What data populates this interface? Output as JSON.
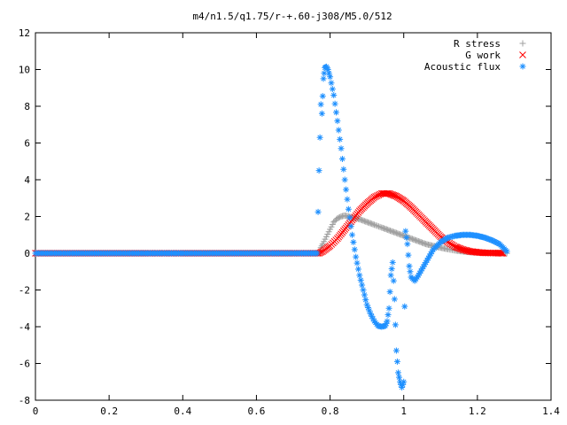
{
  "chart_data": {
    "type": "scatter",
    "title": "m4/n1.5/q1.75/r-+.60-j308/M5.0/512",
    "xlabel": "",
    "ylabel": "",
    "xlim": [
      0,
      1.4
    ],
    "ylim": [
      -8,
      12
    ],
    "xticks": [
      0,
      0.2,
      0.4,
      0.6,
      0.8,
      1,
      1.2,
      1.4
    ],
    "xtick_labels": [
      "0",
      "0.2",
      "0.4",
      "0.6",
      "0.8",
      "1",
      "1.2",
      "1.4"
    ],
    "yticks": [
      -8,
      -6,
      -4,
      -2,
      0,
      2,
      4,
      6,
      8,
      10,
      12
    ],
    "ytick_labels": [
      "-8",
      "-6",
      "-4",
      "-2",
      "0",
      "2",
      "4",
      "6",
      "8",
      "10",
      "12"
    ],
    "grid": false,
    "legend_position": "top-right",
    "series": [
      {
        "name": "R stress",
        "marker": "plus",
        "color": "#a0a0a0",
        "points": [
          [
            0,
            0
          ],
          [
            0.1,
            0
          ],
          [
            0.2,
            0
          ],
          [
            0.3,
            0
          ],
          [
            0.4,
            0
          ],
          [
            0.5,
            0
          ],
          [
            0.6,
            0
          ],
          [
            0.7,
            0
          ],
          [
            0.77,
            0
          ],
          [
            0.775,
            0.3
          ],
          [
            0.78,
            0.5
          ],
          [
            0.79,
            0.9
          ],
          [
            0.8,
            1.3
          ],
          [
            0.81,
            1.7
          ],
          [
            0.82,
            1.9
          ],
          [
            0.83,
            2.0
          ],
          [
            0.84,
            2.05
          ],
          [
            0.85,
            2.0
          ],
          [
            0.86,
            1.95
          ],
          [
            0.88,
            1.85
          ],
          [
            0.9,
            1.7
          ],
          [
            0.92,
            1.55
          ],
          [
            0.94,
            1.4
          ],
          [
            0.96,
            1.25
          ],
          [
            0.98,
            1.1
          ],
          [
            1.0,
            0.95
          ],
          [
            1.02,
            0.8
          ],
          [
            1.04,
            0.65
          ],
          [
            1.06,
            0.5
          ],
          [
            1.08,
            0.4
          ],
          [
            1.1,
            0.3
          ],
          [
            1.12,
            0.22
          ],
          [
            1.14,
            0.15
          ],
          [
            1.16,
            0.1
          ],
          [
            1.18,
            0.06
          ],
          [
            1.2,
            0.04
          ],
          [
            1.22,
            0.02
          ],
          [
            1.25,
            0.01
          ],
          [
            1.28,
            0
          ]
        ]
      },
      {
        "name": "G work",
        "marker": "cross",
        "color": "#ff0000",
        "points": [
          [
            0,
            0
          ],
          [
            0.1,
            0
          ],
          [
            0.2,
            0
          ],
          [
            0.3,
            0
          ],
          [
            0.4,
            0
          ],
          [
            0.5,
            0
          ],
          [
            0.6,
            0
          ],
          [
            0.7,
            0
          ],
          [
            0.77,
            0
          ],
          [
            0.78,
            0.1
          ],
          [
            0.8,
            0.4
          ],
          [
            0.82,
            0.8
          ],
          [
            0.84,
            1.3
          ],
          [
            0.86,
            1.8
          ],
          [
            0.88,
            2.3
          ],
          [
            0.9,
            2.7
          ],
          [
            0.92,
            3.05
          ],
          [
            0.94,
            3.25
          ],
          [
            0.96,
            3.25
          ],
          [
            0.98,
            3.1
          ],
          [
            1.0,
            2.85
          ],
          [
            1.02,
            2.5
          ],
          [
            1.04,
            2.1
          ],
          [
            1.06,
            1.7
          ],
          [
            1.08,
            1.3
          ],
          [
            1.1,
            0.9
          ],
          [
            1.12,
            0.6
          ],
          [
            1.14,
            0.35
          ],
          [
            1.16,
            0.2
          ],
          [
            1.18,
            0.1
          ],
          [
            1.2,
            0.05
          ],
          [
            1.22,
            0.02
          ],
          [
            1.25,
            0.01
          ],
          [
            1.27,
            0
          ]
        ]
      },
      {
        "name": "Acoustic flux",
        "marker": "star",
        "color": "#1e90ff",
        "points": [
          [
            0,
            0
          ],
          [
            0.1,
            0
          ],
          [
            0.2,
            0
          ],
          [
            0.3,
            0
          ],
          [
            0.4,
            0
          ],
          [
            0.5,
            0
          ],
          [
            0.6,
            0
          ],
          [
            0.7,
            0
          ],
          [
            0.765,
            0
          ],
          [
            0.77,
            4.5
          ],
          [
            0.775,
            8.1
          ],
          [
            0.778,
            7.6
          ],
          [
            0.782,
            9.5
          ],
          [
            0.786,
            10.1
          ],
          [
            0.79,
            10.15
          ],
          [
            0.794,
            10.0
          ],
          [
            0.8,
            9.6
          ],
          [
            0.81,
            8.6
          ],
          [
            0.82,
            7.2
          ],
          [
            0.83,
            5.7
          ],
          [
            0.84,
            4.0
          ],
          [
            0.85,
            2.4
          ],
          [
            0.86,
            1.0
          ],
          [
            0.87,
            -0.2
          ],
          [
            0.88,
            -1.2
          ],
          [
            0.89,
            -2.0
          ],
          [
            0.9,
            -2.8
          ],
          [
            0.91,
            -3.3
          ],
          [
            0.92,
            -3.7
          ],
          [
            0.93,
            -3.95
          ],
          [
            0.94,
            -4.0
          ],
          [
            0.95,
            -3.95
          ],
          [
            0.955,
            -3.7
          ],
          [
            0.96,
            -3.0
          ],
          [
            0.965,
            -1.2
          ],
          [
            0.97,
            -0.5
          ],
          [
            0.975,
            -2.5
          ],
          [
            0.98,
            -5.3
          ],
          [
            0.985,
            -6.5
          ],
          [
            0.99,
            -7.0
          ],
          [
            0.995,
            -7.3
          ],
          [
            1.0,
            -7.0
          ],
          [
            1.005,
            1.2
          ],
          [
            1.01,
            0.5
          ],
          [
            1.015,
            -0.7
          ],
          [
            1.02,
            -1.3
          ],
          [
            1.03,
            -1.5
          ],
          [
            1.04,
            -1.2
          ],
          [
            1.06,
            -0.5
          ],
          [
            1.08,
            0.2
          ],
          [
            1.1,
            0.6
          ],
          [
            1.12,
            0.85
          ],
          [
            1.14,
            0.95
          ],
          [
            1.16,
            1.0
          ],
          [
            1.18,
            1.0
          ],
          [
            1.2,
            0.95
          ],
          [
            1.22,
            0.85
          ],
          [
            1.24,
            0.7
          ],
          [
            1.26,
            0.5
          ],
          [
            1.28,
            0.1
          ]
        ]
      }
    ]
  }
}
